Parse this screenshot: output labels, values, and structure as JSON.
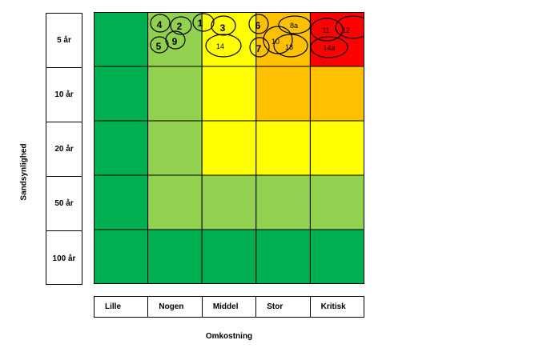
{
  "y_axis_label": "Sandsynlighed",
  "x_axis_label": "Omkostning",
  "rows": [
    "5 år",
    "10 år",
    "20 år",
    "50 år",
    "100 år"
  ],
  "columns": [
    "Lille",
    "Nogen",
    "Middel",
    "Stor",
    "Kritisk"
  ],
  "colors": {
    "dark_green": "#00B050",
    "light_green": "#92D050",
    "yellow": "#FFFF00",
    "orange": "#FFC000",
    "red": "#FF0000",
    "grid_line": "#000000"
  },
  "cell_colors": [
    [
      "dark_green",
      "light_green",
      "yellow",
      "orange",
      "red"
    ],
    [
      "dark_green",
      "light_green",
      "yellow",
      "orange",
      "orange"
    ],
    [
      "dark_green",
      "light_green",
      "yellow",
      "yellow",
      "yellow"
    ],
    [
      "dark_green",
      "light_green",
      "light_green",
      "light_green",
      "light_green"
    ],
    [
      "dark_green",
      "dark_green",
      "dark_green",
      "dark_green",
      "dark_green"
    ]
  ],
  "markers": [
    {
      "label": "4",
      "row": 0,
      "col": 1
    },
    {
      "label": "2",
      "row": 0,
      "col": 1
    },
    {
      "label": "1",
      "row": 0,
      "col": 1
    },
    {
      "label": "5",
      "row": 0,
      "col": 1
    },
    {
      "label": "9",
      "row": 0,
      "col": 1
    },
    {
      "label": "3",
      "row": 0,
      "col": 2
    },
    {
      "label": "14",
      "row": 0,
      "col": 2
    },
    {
      "label": "6",
      "row": 0,
      "col": 3
    },
    {
      "label": "8a",
      "row": 0,
      "col": 3
    },
    {
      "label": "10",
      "row": 0,
      "col": 3
    },
    {
      "label": "7",
      "row": 0,
      "col": 3
    },
    {
      "label": "13",
      "row": 0,
      "col": 3
    },
    {
      "label": "11",
      "row": 0,
      "col": 4
    },
    {
      "label": "12",
      "row": 0,
      "col": 4
    },
    {
      "label": "14a",
      "row": 0,
      "col": 4
    }
  ]
}
